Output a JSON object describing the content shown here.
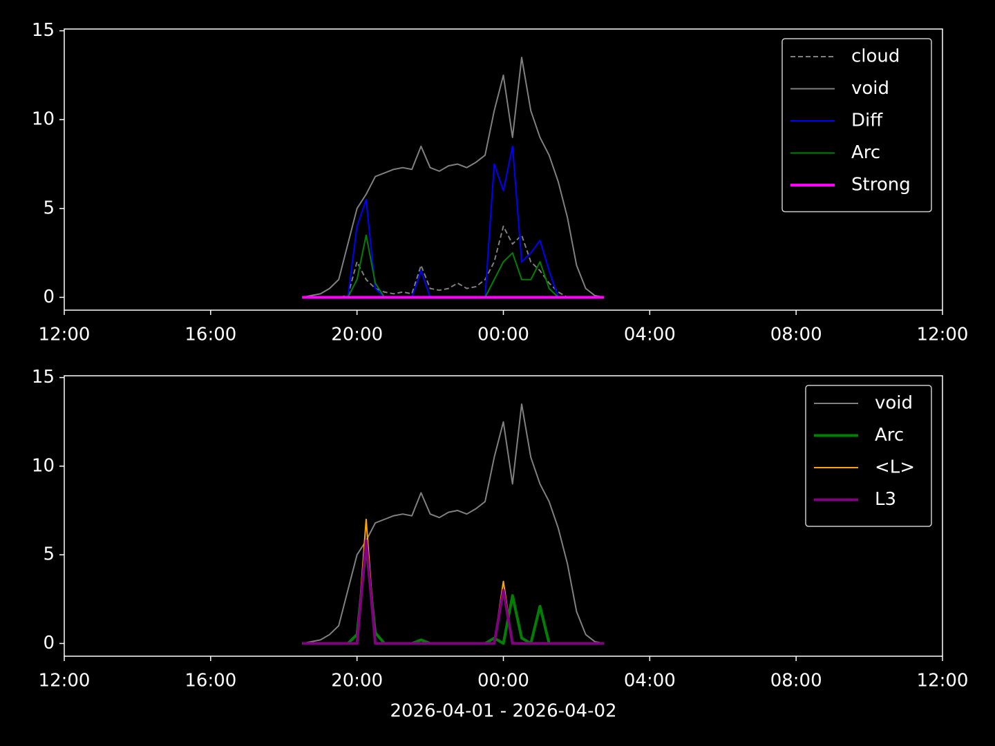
{
  "chart_data": [
    {
      "type": "line",
      "legend": "upper right",
      "xlim": [
        0,
        24
      ],
      "ylim": [
        -0.72,
        15.1
      ],
      "xticks": [
        {
          "value": 0,
          "label": "12:00"
        },
        {
          "value": 4,
          "label": "16:00"
        },
        {
          "value": 8,
          "label": "20:00"
        },
        {
          "value": 12,
          "label": "00:00"
        },
        {
          "value": 16,
          "label": "04:00"
        },
        {
          "value": 20,
          "label": "08:00"
        },
        {
          "value": 24,
          "label": "12:00"
        }
      ],
      "yticks": [
        0,
        5,
        10,
        15
      ],
      "x": [
        6.5,
        6.75,
        7,
        7.25,
        7.5,
        7.75,
        8,
        8.25,
        8.5,
        8.75,
        9,
        9.25,
        9.5,
        9.75,
        10,
        10.25,
        10.5,
        10.75,
        11,
        11.25,
        11.5,
        11.75,
        12,
        12.25,
        12.5,
        12.75,
        13,
        13.25,
        13.5,
        13.75,
        14,
        14.25,
        14.5,
        14.75
      ],
      "series": [
        {
          "name": "cloud",
          "color": "#808080",
          "linestyle": "dashed",
          "linewidth": 2,
          "values": [
            0,
            0,
            0,
            0,
            0,
            0.1,
            2.0,
            1.0,
            0.5,
            0.3,
            0.2,
            0.3,
            0.2,
            1.8,
            0.5,
            0.4,
            0.5,
            0.8,
            0.5,
            0.6,
            1.0,
            2.0,
            4.0,
            3.0,
            3.5,
            2.0,
            1.5,
            0.8,
            0.3,
            0,
            0,
            0,
            0,
            0
          ]
        },
        {
          "name": "void",
          "color": "#808080",
          "linestyle": "solid",
          "linewidth": 2,
          "values": [
            0,
            0.1,
            0.2,
            0.5,
            1.0,
            3.0,
            5.0,
            5.8,
            6.8,
            7.0,
            7.2,
            7.3,
            7.2,
            8.5,
            7.3,
            7.1,
            7.4,
            7.5,
            7.3,
            7.6,
            8.0,
            10.5,
            12.5,
            9.0,
            13.5,
            10.5,
            9.0,
            8.0,
            6.5,
            4.5,
            1.8,
            0.5,
            0.1,
            0
          ]
        },
        {
          "name": "Diff",
          "color": "#0000ff",
          "linestyle": "solid",
          "linewidth": 2,
          "values": [
            0,
            0,
            0,
            0,
            0,
            0,
            4.0,
            5.5,
            0.5,
            0,
            0,
            0,
            0,
            1.5,
            0,
            0,
            0,
            0,
            0,
            0,
            0,
            7.5,
            6.0,
            8.5,
            2.0,
            2.5,
            3.2,
            1.5,
            0,
            0,
            0,
            0,
            0,
            0
          ]
        },
        {
          "name": "Arc",
          "color": "#008000",
          "linestyle": "solid",
          "linewidth": 2,
          "values": [
            0,
            0,
            0,
            0,
            0,
            0,
            1.0,
            3.5,
            0.8,
            0,
            0,
            0,
            0,
            0,
            0,
            0,
            0,
            0,
            0,
            0,
            0,
            1.0,
            2.0,
            2.5,
            1.0,
            1.0,
            2.0,
            0.5,
            0,
            0,
            0,
            0,
            0,
            0
          ]
        },
        {
          "name": "Strong",
          "color": "#ff00ff",
          "linestyle": "solid",
          "linewidth": 4,
          "values": [
            0,
            0,
            0,
            0,
            0,
            0,
            0,
            0,
            0,
            0,
            0,
            0,
            0,
            0,
            0,
            0,
            0,
            0,
            0,
            0,
            0,
            0,
            0,
            0,
            0,
            0,
            0,
            0,
            0,
            0,
            0,
            0,
            0,
            0
          ]
        }
      ]
    },
    {
      "type": "line",
      "legend": "upper right",
      "xlabel": "2026-04-01 - 2026-04-02",
      "xlim": [
        0,
        24
      ],
      "ylim": [
        -0.72,
        15.1
      ],
      "xticks": [
        {
          "value": 0,
          "label": "12:00"
        },
        {
          "value": 4,
          "label": "16:00"
        },
        {
          "value": 8,
          "label": "20:00"
        },
        {
          "value": 12,
          "label": "00:00"
        },
        {
          "value": 16,
          "label": "04:00"
        },
        {
          "value": 20,
          "label": "08:00"
        },
        {
          "value": 24,
          "label": "12:00"
        }
      ],
      "yticks": [
        0,
        5,
        10,
        15
      ],
      "x": [
        6.5,
        6.75,
        7,
        7.25,
        7.5,
        7.75,
        8,
        8.25,
        8.5,
        8.75,
        9,
        9.25,
        9.5,
        9.75,
        10,
        10.25,
        10.5,
        10.75,
        11,
        11.25,
        11.5,
        11.75,
        12,
        12.25,
        12.5,
        12.75,
        13,
        13.25,
        13.5,
        13.75,
        14,
        14.25,
        14.5,
        14.75
      ],
      "series": [
        {
          "name": "void",
          "color": "#808080",
          "linestyle": "solid",
          "linewidth": 2,
          "values": [
            0,
            0.1,
            0.2,
            0.5,
            1.0,
            3.0,
            5.0,
            5.8,
            6.8,
            7.0,
            7.2,
            7.3,
            7.2,
            8.5,
            7.3,
            7.1,
            7.4,
            7.5,
            7.3,
            7.6,
            8.0,
            10.5,
            12.5,
            9.0,
            13.5,
            10.5,
            9.0,
            8.0,
            6.5,
            4.5,
            1.8,
            0.5,
            0.1,
            0
          ]
        },
        {
          "name": "Arc",
          "color": "#008000",
          "linestyle": "solid",
          "linewidth": 4,
          "values": [
            0,
            0,
            0,
            0,
            0,
            0,
            0.5,
            5.5,
            0.6,
            0,
            0,
            0,
            0,
            0.2,
            0,
            0,
            0,
            0,
            0,
            0,
            0,
            0.3,
            0,
            2.7,
            0.3,
            0,
            2.1,
            0,
            0,
            0,
            0,
            0,
            0,
            0
          ]
        },
        {
          "name": "<L>",
          "color": "#ffa500",
          "linestyle": "solid",
          "linewidth": 2,
          "values": [
            0,
            0,
            0,
            0,
            0,
            0,
            0,
            7.0,
            0,
            0,
            0,
            0,
            0,
            0,
            0,
            0,
            0,
            0,
            0,
            0,
            0,
            0,
            3.5,
            0,
            0,
            0,
            0,
            0,
            0,
            0,
            0,
            0,
            0,
            0
          ]
        },
        {
          "name": "L3",
          "color": "#800080",
          "linestyle": "solid",
          "linewidth": 4,
          "values": [
            0,
            0,
            0,
            0,
            0,
            0,
            0,
            5.8,
            0,
            0,
            0,
            0,
            0,
            0,
            0,
            0,
            0,
            0,
            0,
            0,
            0,
            0,
            3.0,
            0,
            0,
            0,
            0,
            0,
            0,
            0,
            0,
            0,
            0,
            0
          ]
        }
      ]
    }
  ]
}
